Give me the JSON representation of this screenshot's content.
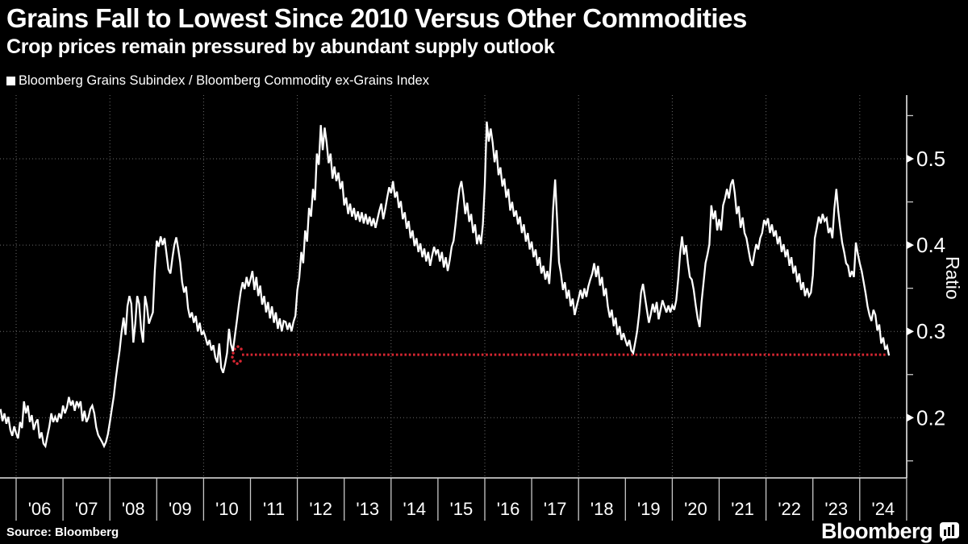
{
  "header": {
    "title": "Grains Fall to Lowest Since 2010 Versus Other Commodities",
    "subtitle": "Crop prices remain pressured by abundant supply outlook"
  },
  "legend": {
    "label": "Bloomberg Grains Subindex / Bloomberg Commodity ex-Grains Index"
  },
  "footer": {
    "source": "Source: Bloomberg",
    "brand": "Bloomberg"
  },
  "colors": {
    "background": "#000000",
    "line": "#ffffff",
    "grid": "#6b6b6b",
    "axis": "#e6e6e6",
    "tick": "#c9c9c9",
    "reference_red": "#d92632",
    "text": "#ffffff"
  },
  "chart_data": {
    "type": "line",
    "title": "Grains Fall to Lowest Since 2010 Versus Other Commodities",
    "subtitle": "Crop prices remain pressured by abundant supply outlook",
    "series_name": "Bloomberg Grains Subindex / Bloomberg Commodity ex-Grains Index",
    "ylabel": "Ratio",
    "ylim": [
      0.13,
      0.574
    ],
    "y_ticks": [
      0.2,
      0.3,
      0.4,
      0.5
    ],
    "y_minor_ticks": [
      0.15,
      0.25,
      0.35,
      0.45,
      0.55
    ],
    "x_labels": [
      "'06",
      "'07",
      "'08",
      "'09",
      "'10",
      "'11",
      "'12",
      "'13",
      "'14",
      "'15",
      "'16",
      "'17",
      "'18",
      "'19",
      "'20",
      "'21",
      "'22",
      "'23",
      "'24"
    ],
    "x_gridline_years": [
      2006,
      2008,
      2010,
      2012,
      2014,
      2016,
      2018,
      2020,
      2022,
      2024
    ],
    "grid": true,
    "legend_position": "top-left",
    "reference_line": {
      "value": 0.273,
      "t_start": 2010.82,
      "t_end": 2024.55,
      "style": "dotted"
    },
    "points_t_start": 2005.667,
    "points_t_step_years": 0.0416667,
    "values": [
      0.21,
      0.196,
      0.205,
      0.193,
      0.201,
      0.186,
      0.179,
      0.19,
      0.182,
      0.176,
      0.195,
      0.188,
      0.219,
      0.205,
      0.214,
      0.195,
      0.203,
      0.186,
      0.194,
      0.198,
      0.176,
      0.183,
      0.17,
      0.167,
      0.179,
      0.19,
      0.205,
      0.195,
      0.201,
      0.195,
      0.205,
      0.199,
      0.214,
      0.205,
      0.212,
      0.224,
      0.214,
      0.22,
      0.208,
      0.219,
      0.213,
      0.219,
      0.196,
      0.208,
      0.195,
      0.2,
      0.21,
      0.214,
      0.205,
      0.189,
      0.18,
      0.176,
      0.172,
      0.167,
      0.172,
      0.181,
      0.195,
      0.21,
      0.225,
      0.245,
      0.262,
      0.278,
      0.299,
      0.316,
      0.296,
      0.329,
      0.341,
      0.332,
      0.287,
      0.309,
      0.341,
      0.332,
      0.302,
      0.287,
      0.341,
      0.329,
      0.309,
      0.316,
      0.322,
      0.37,
      0.405,
      0.398,
      0.41,
      0.4,
      0.408,
      0.39,
      0.372,
      0.367,
      0.385,
      0.4,
      0.409,
      0.396,
      0.38,
      0.357,
      0.345,
      0.352,
      0.327,
      0.316,
      0.322,
      0.31,
      0.318,
      0.3,
      0.31,
      0.296,
      0.3,
      0.293,
      0.284,
      0.29,
      0.278,
      0.284,
      0.27,
      0.264,
      0.286,
      0.258,
      0.252,
      0.262,
      0.275,
      0.303,
      0.285,
      0.277,
      0.295,
      0.312,
      0.33,
      0.346,
      0.357,
      0.349,
      0.363,
      0.352,
      0.36,
      0.37,
      0.348,
      0.363,
      0.341,
      0.353,
      0.331,
      0.341,
      0.322,
      0.334,
      0.315,
      0.329,
      0.31,
      0.322,
      0.303,
      0.315,
      0.3,
      0.312,
      0.311,
      0.302,
      0.31,
      0.3,
      0.311,
      0.318,
      0.348,
      0.362,
      0.392,
      0.379,
      0.417,
      0.404,
      0.443,
      0.433,
      0.465,
      0.452,
      0.506,
      0.493,
      0.539,
      0.51,
      0.536,
      0.519,
      0.495,
      0.506,
      0.477,
      0.491,
      0.474,
      0.484,
      0.465,
      0.474,
      0.446,
      0.455,
      0.436,
      0.448,
      0.433,
      0.443,
      0.429,
      0.439,
      0.427,
      0.438,
      0.425,
      0.436,
      0.424,
      0.433,
      0.422,
      0.431,
      0.42,
      0.43,
      0.44,
      0.448,
      0.43,
      0.442,
      0.455,
      0.467,
      0.46,
      0.474,
      0.455,
      0.462,
      0.443,
      0.451,
      0.43,
      0.438,
      0.419,
      0.428,
      0.408,
      0.417,
      0.399,
      0.408,
      0.392,
      0.402,
      0.386,
      0.396,
      0.381,
      0.392,
      0.376,
      0.388,
      0.398,
      0.39,
      0.395,
      0.381,
      0.392,
      0.374,
      0.386,
      0.37,
      0.382,
      0.398,
      0.405,
      0.424,
      0.446,
      0.465,
      0.474,
      0.458,
      0.436,
      0.449,
      0.427,
      0.436,
      0.414,
      0.424,
      0.401,
      0.412,
      0.401,
      0.424,
      0.47,
      0.543,
      0.52,
      0.535,
      0.519,
      0.496,
      0.51,
      0.481,
      0.49,
      0.468,
      0.477,
      0.455,
      0.465,
      0.44,
      0.45,
      0.433,
      0.44,
      0.424,
      0.433,
      0.414,
      0.424,
      0.404,
      0.414,
      0.395,
      0.404,
      0.386,
      0.395,
      0.376,
      0.386,
      0.367,
      0.376,
      0.36,
      0.37,
      0.355,
      0.39,
      0.442,
      0.476,
      0.43,
      0.38,
      0.367,
      0.348,
      0.357,
      0.338,
      0.348,
      0.329,
      0.338,
      0.319,
      0.329,
      0.338,
      0.348,
      0.338,
      0.35,
      0.34,
      0.352,
      0.36,
      0.367,
      0.379,
      0.363,
      0.376,
      0.353,
      0.363,
      0.341,
      0.35,
      0.329,
      0.316,
      0.325,
      0.306,
      0.316,
      0.296,
      0.306,
      0.29,
      0.298,
      0.29,
      0.283,
      0.29,
      0.278,
      0.275,
      0.287,
      0.3,
      0.32,
      0.345,
      0.355,
      0.34,
      0.325,
      0.31,
      0.32,
      0.332,
      0.322,
      0.334,
      0.314,
      0.325,
      0.336,
      0.329,
      0.322,
      0.33,
      0.322,
      0.33,
      0.325,
      0.336,
      0.36,
      0.39,
      0.41,
      0.389,
      0.4,
      0.379,
      0.363,
      0.36,
      0.348,
      0.33,
      0.315,
      0.305,
      0.334,
      0.357,
      0.379,
      0.389,
      0.401,
      0.446,
      0.43,
      0.44,
      0.417,
      0.43,
      0.417,
      0.446,
      0.454,
      0.465,
      0.454,
      0.47,
      0.476,
      0.46,
      0.436,
      0.445,
      0.42,
      0.432,
      0.414,
      0.408,
      0.395,
      0.382,
      0.376,
      0.39,
      0.401,
      0.395,
      0.408,
      0.414,
      0.429,
      0.424,
      0.431,
      0.414,
      0.424,
      0.41,
      0.417,
      0.401,
      0.41,
      0.392,
      0.401,
      0.386,
      0.395,
      0.376,
      0.386,
      0.367,
      0.376,
      0.357,
      0.367,
      0.348,
      0.357,
      0.341,
      0.35,
      0.341,
      0.345,
      0.365,
      0.408,
      0.42,
      0.433,
      0.425,
      0.436,
      0.428,
      0.431,
      0.414,
      0.42,
      0.408,
      0.442,
      0.465,
      0.439,
      0.42,
      0.403,
      0.392,
      0.379,
      0.376,
      0.363,
      0.37,
      0.363,
      0.403,
      0.39,
      0.379,
      0.37,
      0.357,
      0.344,
      0.329,
      0.319,
      0.312,
      0.325,
      0.319,
      0.301,
      0.308,
      0.286,
      0.293,
      0.279,
      0.283,
      0.272
    ]
  }
}
